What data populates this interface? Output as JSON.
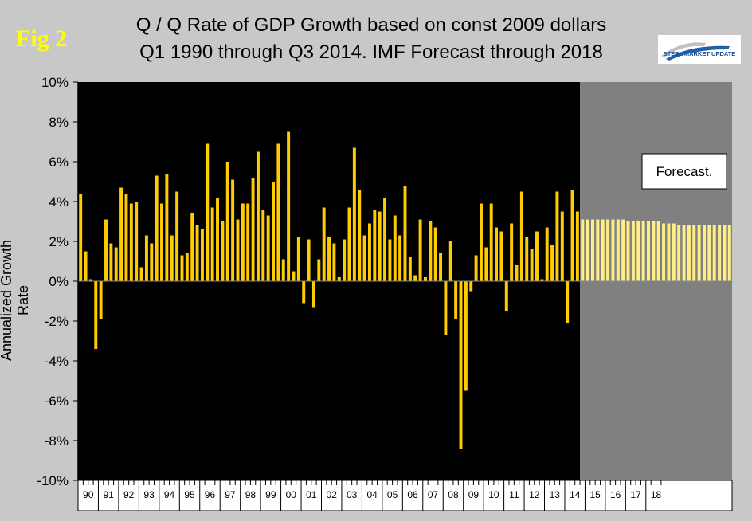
{
  "figure": {
    "fig_label": "Fig 2",
    "title_line1": "Q / Q Rate of GDP Growth based on const 2009 dollars",
    "title_line2": "Q1 1990 through Q3 2014. IMF Forecast through 2018",
    "logo_text": "STEEL MARKET UPDATE"
  },
  "chart_data": {
    "type": "bar",
    "ylabel": "Annualized Growth Rate",
    "ylim": [
      -10,
      10
    ],
    "yticks": [
      "10%",
      "8%",
      "6%",
      "4%",
      "2%",
      "0%",
      "-2%",
      "-4%",
      "-6%",
      "-8%",
      "-10%"
    ],
    "x_year_labels": [
      "90",
      "91",
      "92",
      "93",
      "94",
      "95",
      "96",
      "97",
      "98",
      "99",
      "00",
      "01",
      "02",
      "03",
      "04",
      "05",
      "06",
      "07",
      "08",
      "09",
      "10",
      "11",
      "12",
      "13",
      "14",
      "15",
      "16",
      "17",
      "18"
    ],
    "annotation": "Forecast.",
    "colors": {
      "bar": "#ffcc00",
      "forecast_bar": "#ffee88",
      "plot_bg": "#000000",
      "forecast_bg": "#808080",
      "page_bg": "#c8c8c8"
    },
    "series": [
      {
        "values": [
          4.4,
          1.5,
          0.1,
          -3.4,
          -1.9,
          3.1,
          1.9,
          1.7,
          4.7,
          4.4,
          3.9,
          4.0,
          0.7,
          2.3,
          1.9,
          5.3,
          3.9,
          5.4,
          2.3,
          4.5,
          1.3,
          1.4,
          3.4,
          2.8,
          2.6,
          6.9,
          3.7,
          4.2,
          3.0,
          6.0,
          5.1,
          3.1,
          3.9,
          3.9,
          5.2,
          6.5,
          3.6,
          3.3,
          5.0,
          6.9,
          1.1,
          7.5,
          0.5,
          2.2,
          -1.1,
          2.1,
          -1.3,
          1.1,
          3.7,
          2.2,
          1.9,
          0.2,
          2.1,
          3.7,
          6.7,
          4.6,
          2.3,
          2.9,
          3.6,
          3.5,
          4.2,
          2.1,
          3.3,
          2.3,
          4.8,
          1.2,
          0.3,
          3.1,
          0.2,
          3.0,
          2.7,
          1.4,
          -2.7,
          2.0,
          -1.9,
          -8.4,
          -5.5,
          -0.5,
          1.3,
          3.9,
          1.7,
          3.9,
          2.7,
          2.5,
          -1.5,
          2.9,
          0.8,
          4.5,
          2.2,
          1.6,
          2.5,
          0.1,
          2.7,
          1.8,
          4.5,
          3.5,
          -2.1,
          4.6,
          3.5
        ],
        "forecast_values": [
          3.1,
          3.1,
          3.1,
          3.1,
          3.1,
          3.1,
          3.1,
          3.1,
          3.1,
          3.0,
          3.0,
          3.0,
          3.0,
          3.0,
          3.0,
          3.0,
          2.9,
          2.9,
          2.9,
          2.8,
          2.8,
          2.8,
          2.8,
          2.8,
          2.8,
          2.8,
          2.8,
          2.8,
          2.8,
          2.8
        ]
      }
    ]
  }
}
